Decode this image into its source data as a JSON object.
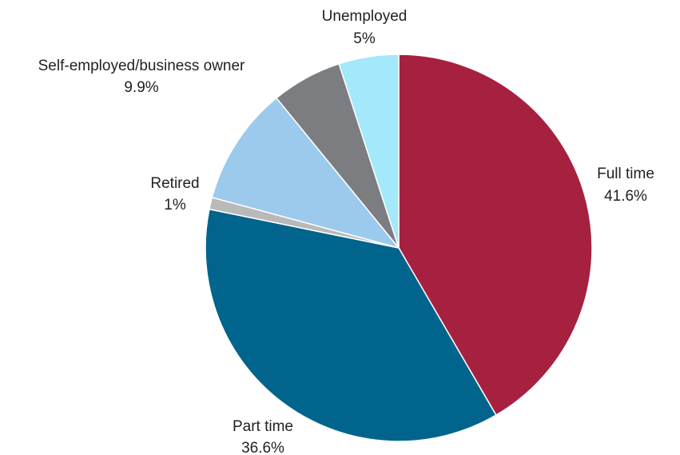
{
  "chart_data": {
    "type": "pie",
    "title": "",
    "start_angle_deg": 0,
    "direction": "clockwise",
    "slices": [
      {
        "label": "Full time",
        "value": 41.6,
        "value_label": "41.6%",
        "color": "#a6213f"
      },
      {
        "label": "Part time",
        "value": 36.6,
        "value_label": "36.6%",
        "color": "#00648c"
      },
      {
        "label": "Retired",
        "value": 1,
        "value_label": "1%",
        "color": "#b9b9b9"
      },
      {
        "label": "Self-employed/business owner",
        "value": 9.9,
        "value_label": "9.9%",
        "color": "#9ccaed"
      },
      {
        "label": "",
        "value": 5.9,
        "value_label": "",
        "color": "#7b7d80"
      },
      {
        "label": "Unemployed",
        "value": 5,
        "value_label": "5%",
        "color": "#a3e8fb"
      }
    ]
  }
}
